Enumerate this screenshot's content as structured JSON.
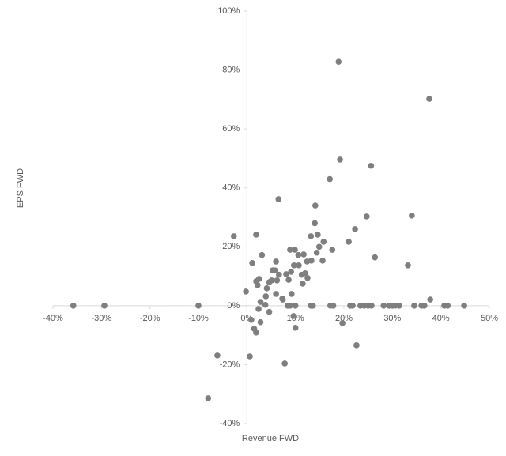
{
  "chart_data": {
    "type": "scatter",
    "xlabel": "Revenue FWD",
    "ylabel": "EPS FWD",
    "color": "#7f7f7f",
    "xlim": [
      -40,
      50
    ],
    "xticks": [
      {
        "value": -40,
        "label": "-40%"
      },
      {
        "value": -30,
        "label": "-30%"
      },
      {
        "value": -20,
        "label": "-20%"
      },
      {
        "value": -10,
        "label": "-10%"
      },
      {
        "value": 0,
        "label": "0%"
      },
      {
        "value": 10,
        "label": "10%"
      },
      {
        "value": 20,
        "label": "20%"
      },
      {
        "value": 30,
        "label": "30%"
      },
      {
        "value": 40,
        "label": "40%"
      },
      {
        "value": 50,
        "label": "50%"
      }
    ],
    "ylim": [
      -40,
      100
    ],
    "yticks": [
      {
        "value": -40,
        "label": "-40%"
      },
      {
        "value": -20,
        "label": "-20%"
      },
      {
        "value": 0,
        "label": "0%"
      },
      {
        "value": 20,
        "label": "20%"
      },
      {
        "value": 40,
        "label": "40%"
      },
      {
        "value": 60,
        "label": "60%"
      },
      {
        "value": 80,
        "label": "80%"
      },
      {
        "value": 100,
        "label": "100%"
      }
    ],
    "x": [
      -35.8,
      -29.4,
      -10,
      -2.7,
      -0.2,
      -8,
      -6.1,
      0.6,
      1.1,
      1.9,
      0.9,
      1.5,
      1.9,
      1.9,
      2.2,
      2.5,
      2.8,
      2.4,
      3.1,
      2.8,
      3.8,
      3.9,
      4.1,
      4.6,
      4.6,
      5.3,
      5.1,
      5.8,
      6,
      6.5,
      6.2,
      6,
      6.6,
      7.3,
      7.4,
      7.8,
      8.1,
      8.4,
      8.6,
      8.9,
      9.1,
      9.2,
      8.9,
      9.6,
      9.9,
      9.7,
      10,
      10,
      10.6,
      10.7,
      11.3,
      11.5,
      11.7,
      12,
      12.4,
      12.5,
      13.2,
      13.6,
      13.2,
      13.3,
      14,
      14.1,
      14.4,
      14.6,
      14.9,
      15.6,
      15.8,
      17.1,
      17.2,
      17.6,
      17.8,
      18.9,
      19.2,
      19.7,
      21,
      21.3,
      21.8,
      22.3,
      22.6,
      23.4,
      24.2,
      24.7,
      25,
      25.6,
      25.7,
      26.4,
      28.2,
      29.3,
      30,
      30.6,
      31.4,
      33.2,
      34,
      34.5,
      36,
      36.6,
      37.6,
      37.8,
      40.7,
      41.4,
      44.8
    ],
    "y": [
      0,
      0,
      0,
      23.6,
      4.8,
      -31.4,
      -16.9,
      -17.2,
      14.5,
      24.1,
      -4.8,
      -7.8,
      -9.1,
      8.3,
      7,
      9.1,
      1.3,
      -1.1,
      17.2,
      -5.6,
      0.3,
      3.2,
      5.9,
      -2.1,
      8,
      12,
      8.6,
      12,
      15,
      36.2,
      8.6,
      4,
      10.5,
      2.4,
      2.1,
      -19.6,
      10.7,
      0,
      8.8,
      19,
      11.5,
      4,
      0,
      -3.5,
      19,
      13.7,
      -7.5,
      0,
      17.2,
      13.7,
      10.5,
      7.5,
      17.4,
      11,
      15,
      9.4,
      0,
      0,
      23.6,
      15.3,
      28,
      34,
      18,
      24.1,
      20,
      15.3,
      21.7,
      43,
      0,
      19,
      0,
      82.8,
      49.6,
      -5.9,
      21.7,
      0,
      0,
      26,
      -13.4,
      0,
      0,
      30.3,
      0,
      47.5,
      0,
      16.4,
      0,
      0,
      0,
      0,
      0,
      13.7,
      30.6,
      0,
      0,
      0,
      70.2,
      2.1,
      0,
      0,
      0
    ]
  }
}
